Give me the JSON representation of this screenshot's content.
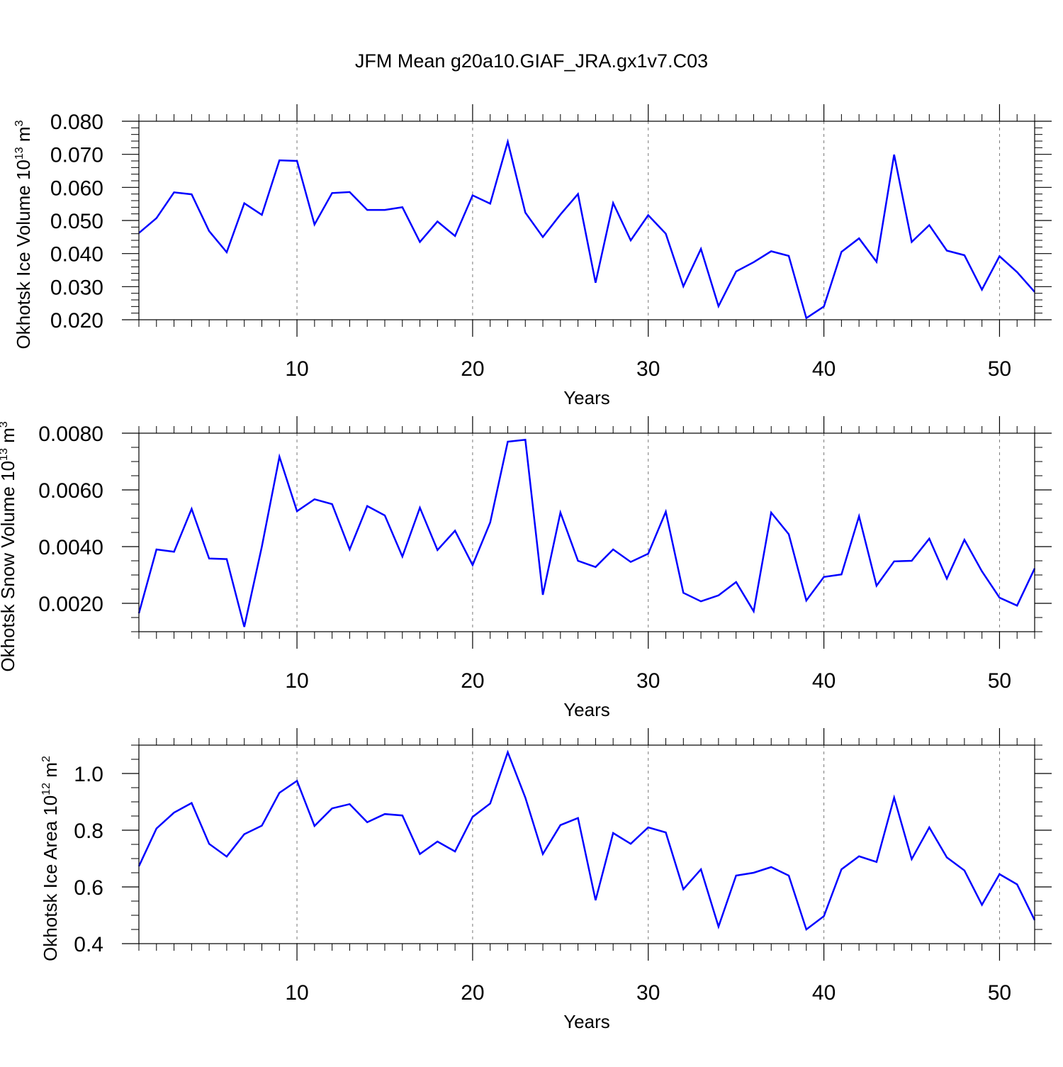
{
  "chart_data": [
    {
      "type": "line",
      "title": "JFM Mean g20a10.GIAF_JRA.gx1v7.C03",
      "ylabel": {
        "base": "Okhotsk Ice Volume 10",
        "exp": "13",
        "unit": " m",
        "unit_exp": "3"
      },
      "xlabel": "Years",
      "xlim": [
        1,
        52
      ],
      "ylim": [
        0.02,
        0.08
      ],
      "xticks": [
        10,
        20,
        30,
        40,
        50
      ],
      "yticks": [
        0.02,
        0.03,
        0.04,
        0.05,
        0.06,
        0.07,
        0.08
      ],
      "ytick_labels": [
        "0.020",
        "0.030",
        "0.040",
        "0.050",
        "0.060",
        "0.070",
        "0.080"
      ],
      "yminor_step": 0.002,
      "color": "#0000ff",
      "x": [
        1,
        2,
        3,
        4,
        5,
        6,
        7,
        8,
        9,
        10,
        11,
        12,
        13,
        14,
        15,
        16,
        17,
        18,
        19,
        20,
        21,
        22,
        23,
        24,
        25,
        26,
        27,
        28,
        29,
        30,
        31,
        32,
        33,
        34,
        35,
        36,
        37,
        38,
        39,
        40,
        41,
        42,
        43,
        44,
        45,
        46,
        47,
        48,
        49,
        50,
        51,
        52
      ],
      "y": [
        0.0462,
        0.0507,
        0.0585,
        0.0579,
        0.0468,
        0.0404,
        0.0552,
        0.0517,
        0.0682,
        0.068,
        0.0488,
        0.0583,
        0.0586,
        0.0532,
        0.0532,
        0.054,
        0.0435,
        0.0497,
        0.0453,
        0.0576,
        0.0551,
        0.0738,
        0.0524,
        0.045,
        0.0518,
        0.058,
        0.0312,
        0.0553,
        0.044,
        0.0516,
        0.046,
        0.0301,
        0.0414,
        0.0241,
        0.0346,
        0.0374,
        0.0407,
        0.0393,
        0.0205,
        0.024,
        0.0405,
        0.0446,
        0.0375,
        0.0699,
        0.0435,
        0.0486,
        0.0409,
        0.0395,
        0.0291,
        0.0392,
        0.0344,
        0.0284
      ]
    },
    {
      "type": "line",
      "ylabel": {
        "base": "Okhotsk Snow Volume 10",
        "exp": "13",
        "unit": " m",
        "unit_exp": "3"
      },
      "xlabel": "Years",
      "xlim": [
        1,
        52
      ],
      "ylim": [
        0.001,
        0.008
      ],
      "xticks": [
        10,
        20,
        30,
        40,
        50
      ],
      "yticks": [
        0.002,
        0.004,
        0.006,
        0.008
      ],
      "ytick_labels": [
        "0.0020",
        "0.0040",
        "0.0060",
        "0.0080"
      ],
      "yminor_step": 0.0005,
      "color": "#0000ff",
      "x": [
        1,
        2,
        3,
        4,
        5,
        6,
        7,
        8,
        9,
        10,
        11,
        12,
        13,
        14,
        15,
        16,
        17,
        18,
        19,
        20,
        21,
        22,
        23,
        24,
        25,
        26,
        27,
        28,
        29,
        30,
        31,
        32,
        33,
        34,
        35,
        36,
        37,
        38,
        39,
        40,
        41,
        42,
        43,
        44,
        45,
        46,
        47,
        48,
        49,
        50,
        51,
        52
      ],
      "y": [
        0.00165,
        0.0039,
        0.00382,
        0.00533,
        0.00358,
        0.00356,
        0.00117,
        0.004,
        0.00717,
        0.00525,
        0.00567,
        0.0055,
        0.0039,
        0.00543,
        0.0051,
        0.00365,
        0.00537,
        0.00388,
        0.00456,
        0.00335,
        0.00485,
        0.0077,
        0.00777,
        0.0023,
        0.0052,
        0.0035,
        0.00328,
        0.0039,
        0.00346,
        0.00375,
        0.00523,
        0.00237,
        0.00207,
        0.00228,
        0.00275,
        0.00172,
        0.0052,
        0.00444,
        0.0021,
        0.00293,
        0.00302,
        0.00507,
        0.00262,
        0.00348,
        0.0035,
        0.00428,
        0.00287,
        0.00424,
        0.00313,
        0.0022,
        0.00192,
        0.00323
      ]
    },
    {
      "type": "line",
      "ylabel": {
        "base": "Okhotsk Ice Area 10",
        "exp": "12",
        "unit": " m",
        "unit_exp": "2"
      },
      "xlabel": "Years",
      "xlim": [
        1,
        52
      ],
      "ylim": [
        0.4,
        1.1
      ],
      "xticks": [
        10,
        20,
        30,
        40,
        50
      ],
      "yticks": [
        0.4,
        0.6,
        0.8,
        1.0
      ],
      "ytick_labels": [
        "0.4",
        "0.6",
        "0.8",
        "1.0"
      ],
      "yminor_step": 0.05,
      "color": "#0000ff",
      "x": [
        1,
        2,
        3,
        4,
        5,
        6,
        7,
        8,
        9,
        10,
        11,
        12,
        13,
        14,
        15,
        16,
        17,
        18,
        19,
        20,
        21,
        22,
        23,
        24,
        25,
        26,
        27,
        28,
        29,
        30,
        31,
        32,
        33,
        34,
        35,
        36,
        37,
        38,
        39,
        40,
        41,
        42,
        43,
        44,
        45,
        46,
        47,
        48,
        49,
        50,
        51,
        52
      ],
      "y": [
        0.673,
        0.806,
        0.862,
        0.896,
        0.752,
        0.707,
        0.786,
        0.816,
        0.932,
        0.974,
        0.815,
        0.877,
        0.892,
        0.828,
        0.857,
        0.852,
        0.716,
        0.76,
        0.725,
        0.847,
        0.894,
        1.075,
        0.915,
        0.716,
        0.818,
        0.843,
        0.553,
        0.79,
        0.752,
        0.81,
        0.792,
        0.592,
        0.662,
        0.46,
        0.64,
        0.65,
        0.67,
        0.64,
        0.45,
        0.497,
        0.662,
        0.708,
        0.688,
        0.915,
        0.698,
        0.81,
        0.704,
        0.658,
        0.537,
        0.645,
        0.609,
        0.483
      ]
    }
  ]
}
